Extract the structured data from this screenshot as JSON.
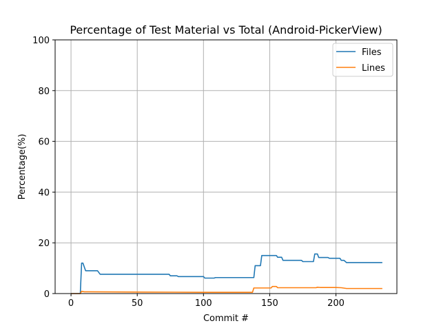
{
  "chart_data": {
    "type": "line",
    "title": "Percentage of Test Material vs Total (Android-PickerView)",
    "xlabel": "Commit #",
    "ylabel": "Percentage(%)",
    "xlim": [
      -12,
      246
    ],
    "ylim": [
      0,
      100
    ],
    "xticks": [
      0,
      50,
      100,
      150,
      200
    ],
    "yticks": [
      0,
      20,
      40,
      60,
      80,
      100
    ],
    "grid": true,
    "legend_position": "top-right",
    "series": [
      {
        "name": "Files",
        "color": "#1f77b4",
        "points": [
          [
            0,
            0
          ],
          [
            7,
            0
          ],
          [
            8,
            12
          ],
          [
            9,
            12
          ],
          [
            11,
            9
          ],
          [
            20,
            9
          ],
          [
            22,
            7.6
          ],
          [
            74,
            7.6
          ],
          [
            75,
            7
          ],
          [
            80,
            7
          ],
          [
            81,
            6.7
          ],
          [
            100,
            6.7
          ],
          [
            101,
            6.1
          ],
          [
            108,
            6.1
          ],
          [
            109,
            6.3
          ],
          [
            138,
            6.3
          ],
          [
            139,
            11
          ],
          [
            143,
            11
          ],
          [
            144,
            15
          ],
          [
            155,
            15
          ],
          [
            156,
            14.3
          ],
          [
            159,
            14.3
          ],
          [
            160,
            13.1
          ],
          [
            174,
            13.1
          ],
          [
            175,
            12.6
          ],
          [
            183,
            12.6
          ],
          [
            184,
            15.6
          ],
          [
            186,
            15.6
          ],
          [
            187,
            14.2
          ],
          [
            194,
            14.2
          ],
          [
            195,
            13.9
          ],
          [
            203,
            13.9
          ],
          [
            204,
            13.1
          ],
          [
            206,
            13.1
          ],
          [
            208,
            12.2
          ],
          [
            235,
            12.2
          ]
        ]
      },
      {
        "name": "Lines",
        "color": "#ff7f0e",
        "points": [
          [
            0,
            0
          ],
          [
            7,
            0
          ],
          [
            8,
            0.9
          ],
          [
            10,
            0.7
          ],
          [
            50,
            0.6
          ],
          [
            100,
            0.5
          ],
          [
            137,
            0.5
          ],
          [
            138,
            2.2
          ],
          [
            151,
            2.2
          ],
          [
            152,
            2.8
          ],
          [
            155,
            2.8
          ],
          [
            156,
            2.3
          ],
          [
            185,
            2.3
          ],
          [
            186,
            2.5
          ],
          [
            188,
            2.4
          ],
          [
            200,
            2.4
          ],
          [
            204,
            2.3
          ],
          [
            208,
            2.0
          ],
          [
            235,
            2.0
          ]
        ]
      }
    ]
  }
}
